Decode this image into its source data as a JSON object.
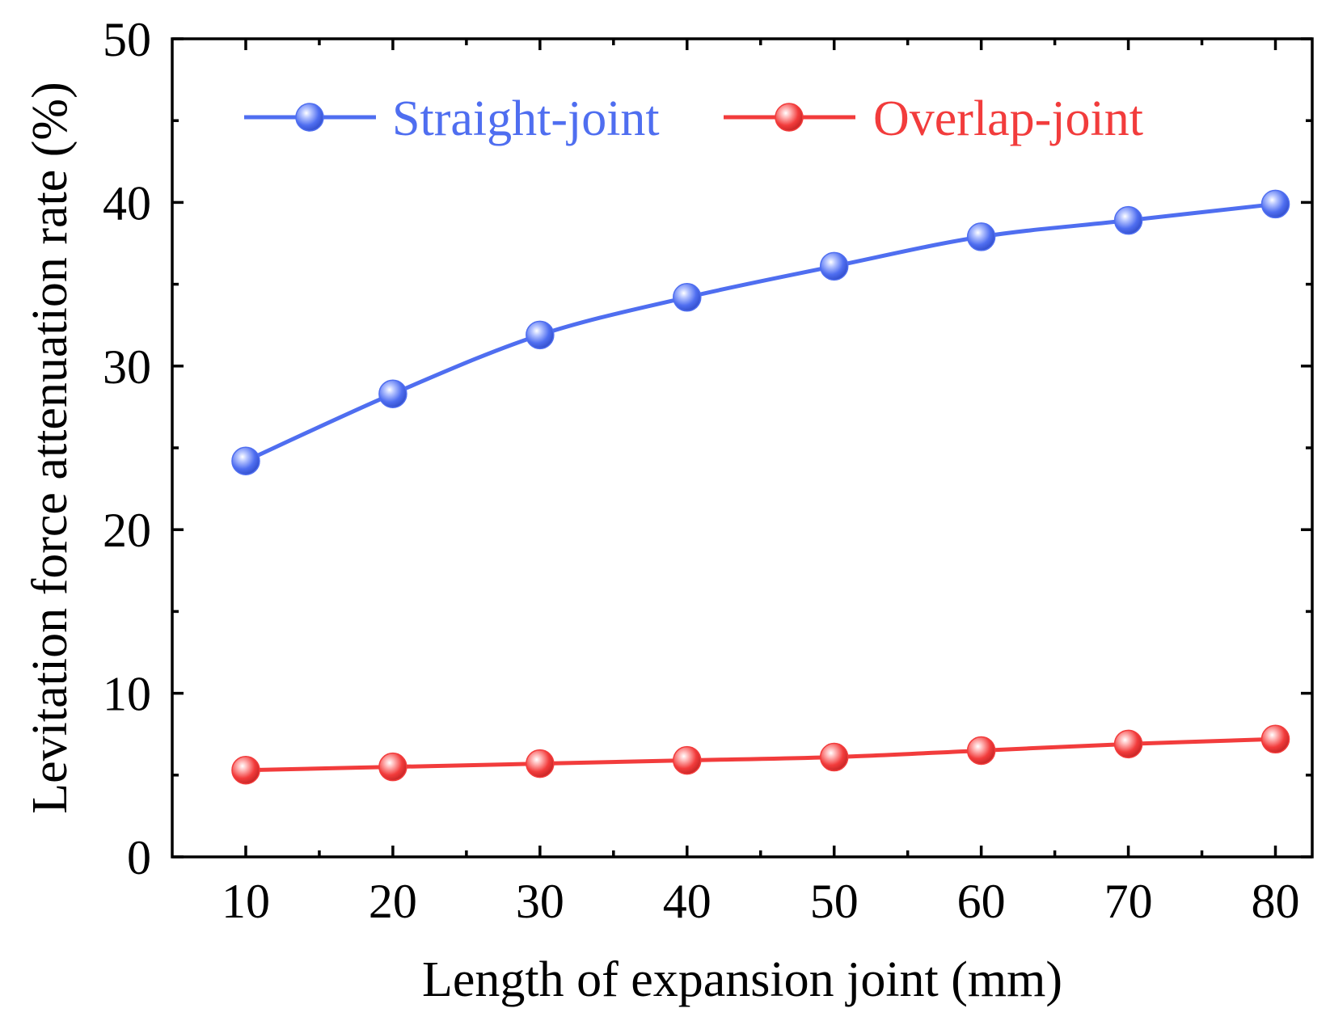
{
  "chart_data": {
    "type": "line",
    "title": "",
    "xlabel": "Length of expansion joint (mm)",
    "ylabel": "Levitation force attenuation rate (%)",
    "x": [
      10,
      20,
      30,
      40,
      50,
      60,
      70,
      80
    ],
    "xticks": [
      10,
      20,
      30,
      40,
      50,
      60,
      70,
      80
    ],
    "xlim": [
      5,
      82.5
    ],
    "yticks": [
      0,
      10,
      20,
      30,
      40,
      50
    ],
    "ylim": [
      0,
      50
    ],
    "grid": false,
    "legend_position": "top",
    "series": [
      {
        "name": "Straight-joint",
        "color": "#4f6ef0",
        "values": [
          24.2,
          28.3,
          31.9,
          34.2,
          36.1,
          37.9,
          38.9,
          39.9
        ]
      },
      {
        "name": "Overlap-joint",
        "color": "#f23c3c",
        "values": [
          5.3,
          5.5,
          5.7,
          5.9,
          6.1,
          6.5,
          6.9,
          7.2
        ]
      }
    ]
  }
}
